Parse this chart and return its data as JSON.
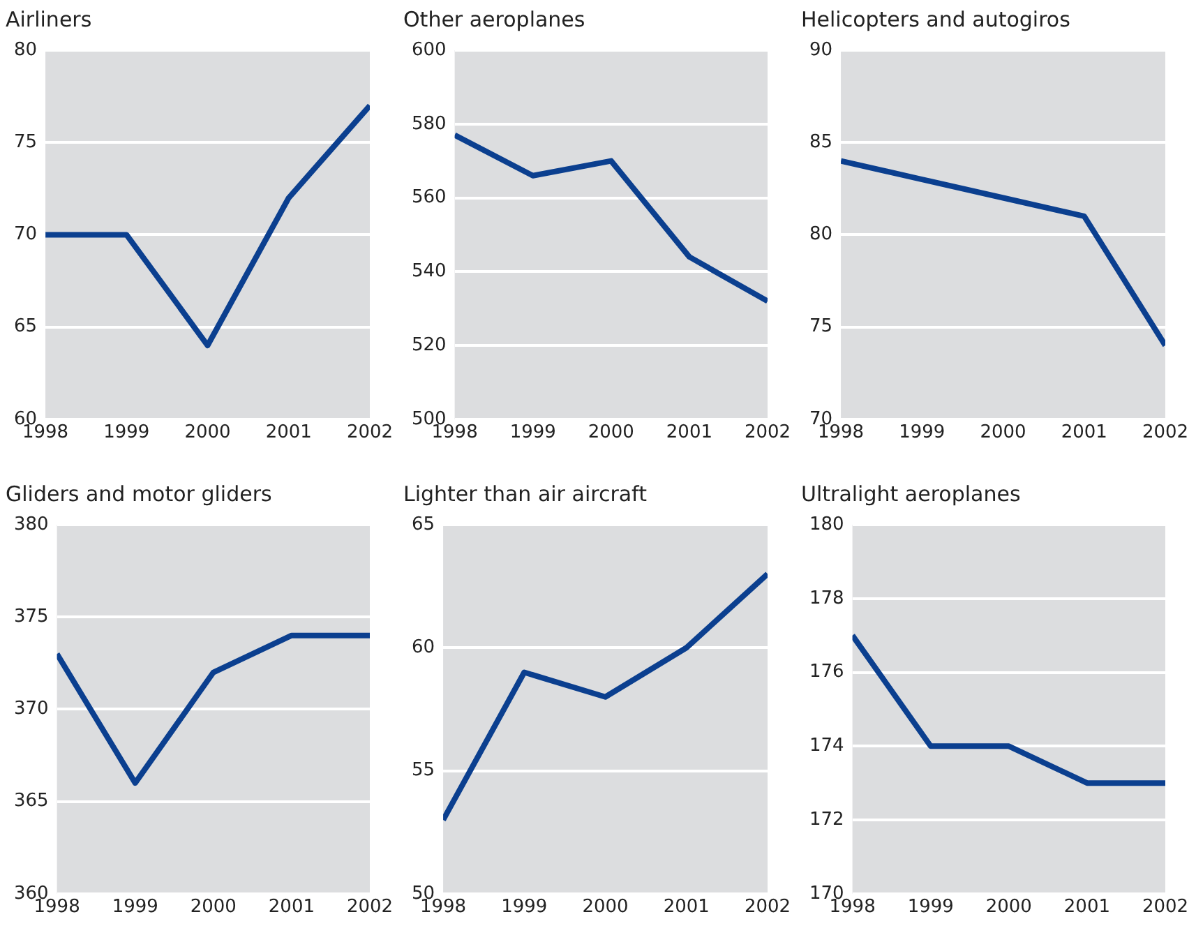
{
  "chart_data": [
    {
      "type": "line",
      "title": "Airliners",
      "x": [
        1998,
        1999,
        2000,
        2001,
        2002
      ],
      "values": [
        70,
        70,
        64,
        72,
        77
      ],
      "color": "#0b3f8f",
      "xlim": [
        1998,
        2002
      ],
      "xticks": [
        1998,
        1999,
        2000,
        2001,
        2002
      ],
      "ylim": [
        60,
        80
      ],
      "yticks": [
        60,
        65,
        70,
        75,
        80
      ],
      "grid": "y",
      "legend": false,
      "marker": "none"
    },
    {
      "type": "line",
      "title": "Other aeroplanes",
      "x": [
        1998,
        1999,
        2000,
        2001,
        2002
      ],
      "values": [
        577,
        566,
        570,
        544,
        532
      ],
      "color": "#0b3f8f",
      "xlim": [
        1998,
        2002
      ],
      "xticks": [
        1998,
        1999,
        2000,
        2001,
        2002
      ],
      "ylim": [
        500,
        600
      ],
      "yticks": [
        500,
        520,
        540,
        560,
        580,
        600
      ],
      "grid": "y",
      "legend": false,
      "marker": "none"
    },
    {
      "type": "line",
      "title": "Helicopters and autogiros",
      "x": [
        1998,
        1999,
        2000,
        2001,
        2002
      ],
      "values": [
        84,
        83,
        82,
        81,
        74
      ],
      "color": "#0b3f8f",
      "xlim": [
        1998,
        2002
      ],
      "xticks": [
        1998,
        1999,
        2000,
        2001,
        2002
      ],
      "ylim": [
        70,
        90
      ],
      "yticks": [
        70,
        75,
        80,
        85,
        90
      ],
      "grid": "y",
      "legend": false,
      "marker": "none"
    },
    {
      "type": "line",
      "title": "Gliders and motor gliders",
      "x": [
        1998,
        1999,
        2000,
        2001,
        2002
      ],
      "values": [
        373,
        366,
        372,
        374,
        374
      ],
      "color": "#0b3f8f",
      "xlim": [
        1998,
        2002
      ],
      "xticks": [
        1998,
        1999,
        2000,
        2001,
        2002
      ],
      "ylim": [
        360,
        380
      ],
      "yticks": [
        360,
        365,
        370,
        375,
        380
      ],
      "grid": "y",
      "legend": false,
      "marker": "none"
    },
    {
      "type": "line",
      "title": "Lighter than air aircraft",
      "x": [
        1998,
        1999,
        2000,
        2001,
        2002
      ],
      "values": [
        53,
        59,
        58,
        60,
        63
      ],
      "color": "#0b3f8f",
      "xlim": [
        1998,
        2002
      ],
      "xticks": [
        1998,
        1999,
        2000,
        2001,
        2002
      ],
      "ylim": [
        50,
        65
      ],
      "yticks": [
        50,
        55,
        60,
        65
      ],
      "grid": "y",
      "legend": false,
      "marker": "none"
    },
    {
      "type": "line",
      "title": "Ultralight aeroplanes",
      "x": [
        1998,
        1999,
        2000,
        2001,
        2002
      ],
      "values": [
        177,
        174,
        174,
        173,
        173
      ],
      "color": "#0b3f8f",
      "xlim": [
        1998,
        2002
      ],
      "xticks": [
        1998,
        1999,
        2000,
        2001,
        2002
      ],
      "ylim": [
        170,
        180
      ],
      "yticks": [
        170,
        172,
        174,
        176,
        178,
        180
      ],
      "grid": "y",
      "legend": false,
      "marker": "none"
    }
  ]
}
